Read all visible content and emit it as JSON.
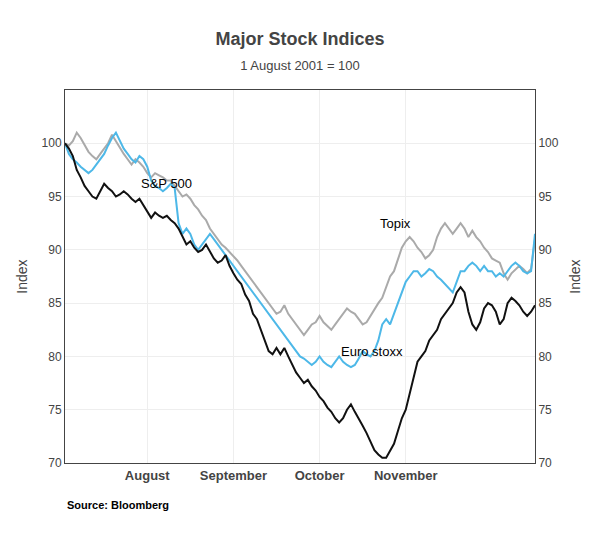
{
  "chart_data": {
    "type": "line",
    "title": "Major Stock Indices",
    "subtitle": "1 August 2001 = 100",
    "ylabel": "Index",
    "y2label": "Index",
    "source": "Source: Bloomberg",
    "categories": [
      null,
      null,
      null,
      null,
      null,
      null,
      null,
      null,
      null,
      null,
      null,
      null,
      null,
      null,
      null,
      null,
      null,
      null,
      null,
      null,
      null,
      "August",
      null,
      null,
      null,
      null,
      null,
      null,
      null,
      null,
      null,
      null,
      null,
      null,
      null,
      null,
      null,
      null,
      null,
      null,
      null,
      null,
      null,
      "September",
      null,
      null,
      null,
      null,
      null,
      null,
      null,
      null,
      null,
      null,
      null,
      null,
      null,
      null,
      null,
      null,
      null,
      null,
      null,
      null,
      null,
      "October",
      null,
      null,
      null,
      null,
      null,
      null,
      null,
      null,
      null,
      null,
      null,
      null,
      null,
      null,
      null,
      null,
      null,
      null,
      null,
      null,
      null,
      "November",
      null,
      null,
      null,
      null,
      null,
      null,
      null,
      null,
      null,
      null,
      null,
      null,
      null,
      null,
      null,
      null,
      null,
      null,
      null,
      null,
      null,
      null,
      null,
      null,
      null,
      null,
      null,
      null,
      null,
      null,
      null,
      null,
      null
    ],
    "series": [
      {
        "color": "#aaaaaa",
        "values": [
          100.0,
          99.8,
          100.2,
          101.0,
          100.5,
          99.8,
          99.2,
          98.8,
          98.5,
          99.0,
          99.5,
          100.0,
          100.8,
          100.2,
          99.5,
          99.0,
          98.5,
          98.0,
          98.5,
          98.2,
          97.8,
          97.2,
          96.8,
          97.2,
          97.0,
          96.8,
          96.5,
          96.5,
          96.0,
          95.5,
          95.0,
          95.2,
          94.8,
          94.2,
          93.8,
          93.2,
          92.8,
          92.0,
          91.5,
          91.0,
          90.5,
          90.2,
          89.8,
          89.5,
          89.0,
          88.5,
          88.0,
          87.5,
          87.0,
          86.5,
          86.0,
          85.5,
          85.0,
          84.5,
          84.0,
          84.2,
          84.8,
          84.0,
          83.5,
          83.0,
          82.5,
          82.0,
          82.5,
          83.0,
          83.2,
          83.8,
          83.2,
          82.8,
          82.5,
          83.0,
          83.5,
          84.0,
          84.5,
          84.2,
          84.0,
          83.5,
          83.0,
          83.2,
          83.8,
          84.5,
          85.0,
          85.5,
          86.5,
          87.5,
          88.0,
          89.2,
          90.2,
          90.8,
          91.2,
          90.8,
          90.2,
          89.8,
          89.2,
          89.5,
          90.0,
          91.2,
          92.0,
          92.5,
          92.0,
          91.5,
          92.0,
          92.5,
          92.0,
          91.2,
          91.8,
          91.2,
          90.8,
          90.2,
          89.8,
          89.2,
          89.0,
          88.8,
          87.8,
          87.2,
          87.8,
          88.2,
          88.5,
          88.2,
          87.8,
          88.2,
          91.0
        ]
      },
      {
        "color": "#4db8e8",
        "values": [
          100.0,
          99.0,
          98.5,
          98.2,
          97.8,
          97.5,
          97.2,
          97.5,
          98.0,
          98.5,
          99.0,
          99.8,
          100.5,
          101.0,
          100.2,
          99.5,
          99.0,
          98.5,
          98.2,
          98.8,
          98.5,
          97.8,
          96.5,
          96.0,
          95.8,
          95.5,
          95.8,
          96.2,
          95.8,
          92.5,
          91.5,
          92.0,
          91.5,
          90.5,
          90.0,
          90.5,
          91.0,
          91.5,
          91.0,
          90.5,
          90.0,
          89.5,
          89.0,
          88.5,
          88.0,
          87.5,
          87.0,
          86.5,
          86.0,
          85.5,
          85.0,
          84.5,
          84.0,
          83.5,
          83.0,
          82.5,
          82.0,
          81.5,
          81.0,
          80.5,
          80.0,
          79.8,
          79.5,
          79.2,
          79.5,
          80.0,
          79.5,
          79.2,
          79.0,
          79.5,
          80.0,
          79.5,
          79.2,
          79.0,
          79.2,
          79.8,
          80.5,
          80.2,
          80.0,
          80.5,
          81.5,
          83.0,
          83.5,
          83.0,
          84.0,
          85.0,
          86.0,
          87.0,
          87.5,
          88.0,
          88.0,
          87.5,
          87.8,
          88.2,
          88.0,
          87.5,
          87.2,
          86.8,
          86.5,
          86.0,
          87.0,
          88.0,
          88.0,
          88.5,
          88.8,
          88.5,
          88.0,
          88.5,
          88.0,
          88.0,
          87.5,
          87.8,
          87.5,
          88.0,
          88.5,
          88.8,
          88.5,
          88.0,
          87.8,
          88.0,
          91.5
        ]
      },
      {
        "color": "#111111",
        "values": [
          100.0,
          99.5,
          98.8,
          97.5,
          96.8,
          96.0,
          95.5,
          95.0,
          94.8,
          95.5,
          96.2,
          95.8,
          95.5,
          95.0,
          95.2,
          95.5,
          95.2,
          94.8,
          94.5,
          94.8,
          94.2,
          93.5,
          93.0,
          93.5,
          93.2,
          93.0,
          93.2,
          92.8,
          92.5,
          92.0,
          91.2,
          90.5,
          90.8,
          90.2,
          89.8,
          90.0,
          90.5,
          89.8,
          89.2,
          88.8,
          89.0,
          89.5,
          88.5,
          87.8,
          87.2,
          86.8,
          85.8,
          85.2,
          84.0,
          83.5,
          82.5,
          81.5,
          80.5,
          80.2,
          80.8,
          80.2,
          80.8,
          80.0,
          79.2,
          78.5,
          78.0,
          77.5,
          77.8,
          77.2,
          76.8,
          76.2,
          75.8,
          75.2,
          74.8,
          74.2,
          73.8,
          74.2,
          75.0,
          75.5,
          74.8,
          74.2,
          73.5,
          72.8,
          72.0,
          71.2,
          70.8,
          70.5,
          70.5,
          71.2,
          71.8,
          73.0,
          74.2,
          75.0,
          76.5,
          77.8,
          79.5,
          80.0,
          80.5,
          81.5,
          82.0,
          82.5,
          83.5,
          84.0,
          84.5,
          85.0,
          86.0,
          86.5,
          86.0,
          84.2,
          83.0,
          82.5,
          83.2,
          84.5,
          85.0,
          84.8,
          84.2,
          83.0,
          83.5,
          85.0,
          85.5,
          85.2,
          84.8,
          84.2,
          83.8,
          84.2,
          84.8
        ]
      }
    ],
    "ylim": [
      70,
      105
    ],
    "yticks": [
      70,
      75,
      80,
      85,
      90,
      95,
      100
    ],
    "y2lim": [
      70,
      105
    ],
    "y2ticks": [
      70,
      75,
      80,
      85,
      90,
      95,
      100
    ],
    "grid": true,
    "annotations": [
      {
        "text": "S&P 500",
        "x": 19,
        "y": 96.2
      },
      {
        "text": "Topix",
        "x": 80,
        "y": 92.5
      },
      {
        "text": "Euro stoxx",
        "x": 70,
        "y": 80.5
      }
    ]
  }
}
